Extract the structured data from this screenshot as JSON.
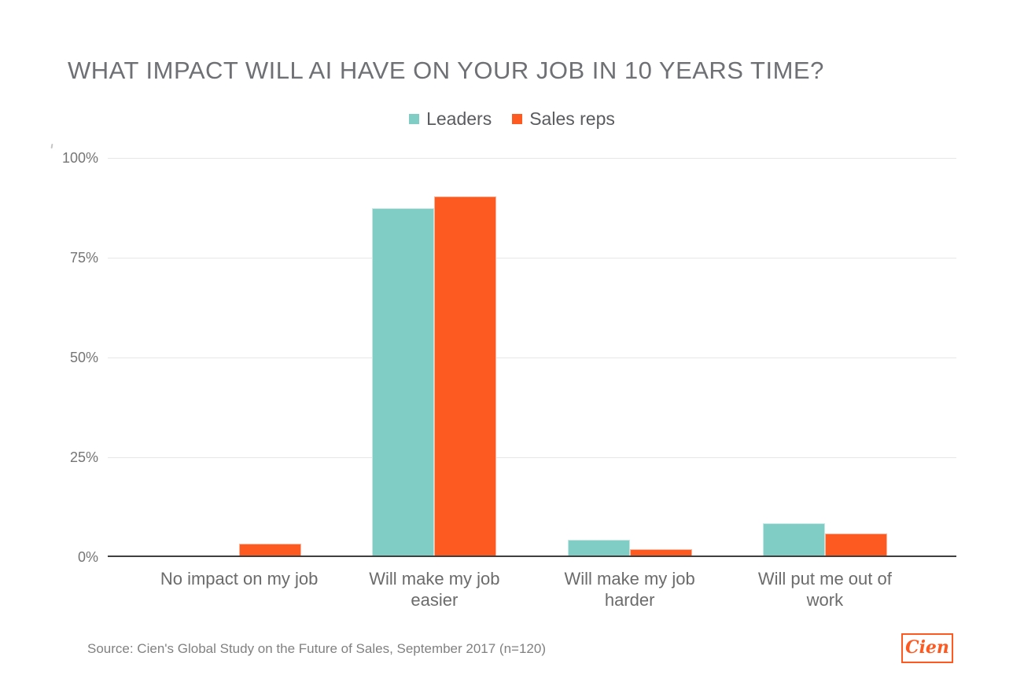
{
  "source": "Source: Cien's Global Study on the Future of Sales, September 2017 (n=120)",
  "logo": {
    "text": "Cien"
  },
  "colors": {
    "teal": "#7fcdc4",
    "orange": "#fd5a22",
    "title_gray": "#6e7074",
    "axis_label_gray": "#757575",
    "gridline_gray": "#e7e7e7",
    "axis_line_dark": "#3f3f3f"
  },
  "chart_data": {
    "type": "bar",
    "title": "WHAT IMPACT WILL AI HAVE ON YOUR JOB IN 10 YEARS TIME?",
    "categories": [
      "No impact on my job",
      "Will make my job\neasier",
      "Will make my job\nharder",
      "Will put me out of\nwork"
    ],
    "series": [
      {
        "name": "Leaders",
        "color": "#7fcdc4",
        "values": [
          0,
          87,
          4,
          8
        ]
      },
      {
        "name": "Sales reps",
        "color": "#fd5a22",
        "values": [
          3,
          90,
          1.5,
          5.5
        ]
      }
    ],
    "xlabel": "",
    "ylabel": "",
    "ylim": [
      0,
      100
    ],
    "yticks": [
      "100%",
      "75%",
      "50%",
      "25%",
      "0%"
    ],
    "ytick_percents": [
      100,
      75,
      50,
      25,
      0
    ],
    "grid": true,
    "legend_position": "top"
  }
}
